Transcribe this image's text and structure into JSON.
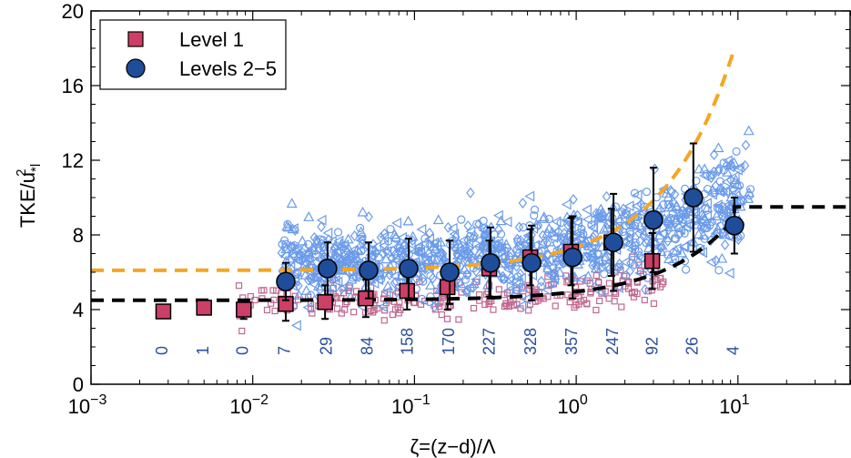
{
  "chart_data": {
    "type": "scatter",
    "title": "",
    "xlabel": "ζ=(z−d)/Λ",
    "ylabel": "TKE/u",
    "ylabel_sub": "*l",
    "ylabel_sup": "2",
    "xscale": "log",
    "xlim": [
      0.001,
      50
    ],
    "ylim": [
      0,
      20
    ],
    "x_ticks": [
      {
        "value": 0.001,
        "base": "10",
        "exp": "−3"
      },
      {
        "value": 0.01,
        "base": "10",
        "exp": "−2"
      },
      {
        "value": 0.1,
        "base": "10",
        "exp": "−1"
      },
      {
        "value": 1,
        "base": "10",
        "exp": "0"
      },
      {
        "value": 10,
        "base": "10",
        "exp": "1"
      }
    ],
    "y_ticks": [
      "0",
      "4",
      "8",
      "12",
      "16",
      "20"
    ],
    "grid": false,
    "legend_position": "top-left",
    "legend": [
      {
        "label": "Level 1",
        "marker": "square",
        "color": "#cc3f66"
      },
      {
        "label": "Levels 2−5",
        "marker": "circle",
        "color": "#1f4d9a"
      }
    ],
    "series": [
      {
        "name": "Level 1",
        "marker": "square",
        "color": "#cc3f66",
        "points": [
          {
            "x": 0.0028,
            "y": 3.9
          },
          {
            "x": 0.005,
            "y": 4.1
          },
          {
            "x": 0.0088,
            "y": 4.0,
            "err": 0.5
          },
          {
            "x": 0.016,
            "y": 4.3,
            "err": 0.9
          },
          {
            "x": 0.028,
            "y": 4.4,
            "err": 0.9
          },
          {
            "x": 0.05,
            "y": 4.6,
            "err": 1.0
          },
          {
            "x": 0.09,
            "y": 5.0,
            "err": 1.0
          },
          {
            "x": 0.16,
            "y": 5.2,
            "err": 1.2
          },
          {
            "x": 0.29,
            "y": 6.2,
            "err": 1.5
          },
          {
            "x": 0.52,
            "y": 6.8,
            "err": 1.5
          },
          {
            "x": 0.93,
            "y": 7.1,
            "err": 1.8
          },
          {
            "x": 1.65,
            "y": 7.6,
            "err": 1.8
          },
          {
            "x": 2.95,
            "y": 6.6,
            "err": 1.5
          }
        ]
      },
      {
        "name": "Levels 2−5",
        "marker": "circle",
        "color": "#1f4d9a",
        "points": [
          {
            "x": 0.016,
            "y": 5.5,
            "err": 1.0
          },
          {
            "x": 0.029,
            "y": 6.2,
            "err": 1.4
          },
          {
            "x": 0.052,
            "y": 6.1,
            "err": 1.5
          },
          {
            "x": 0.092,
            "y": 6.2,
            "err": 1.6
          },
          {
            "x": 0.165,
            "y": 6.0,
            "err": 1.7
          },
          {
            "x": 0.295,
            "y": 6.5,
            "err": 1.9
          },
          {
            "x": 0.53,
            "y": 6.5,
            "err": 2.0
          },
          {
            "x": 0.95,
            "y": 6.8,
            "err": 2.2
          },
          {
            "x": 1.7,
            "y": 7.6,
            "err": 2.6
          },
          {
            "x": 3.0,
            "y": 8.8,
            "err": 2.8
          },
          {
            "x": 5.3,
            "y": 10.0,
            "err": 2.9
          },
          {
            "x": 9.5,
            "y": 8.5,
            "err": 1.5
          }
        ]
      }
    ],
    "fit_lines": [
      {
        "style": "dashed",
        "color": "#f5a623",
        "a": 6.1,
        "b": 1.25,
        "n": 1.0,
        "x_start": 0.001,
        "x_end": 9.5
      },
      {
        "style": "dashed",
        "color": "#000000",
        "a": 4.5,
        "b": 0.46,
        "n": 1.0,
        "x_start": 0.001,
        "x_end": 9.5,
        "asymptote": 9.5,
        "asymptote_x_end": 50
      }
    ],
    "counts": [
      {
        "x": 0.0028,
        "label": "0"
      },
      {
        "x": 0.005,
        "label": "1"
      },
      {
        "x": 0.0088,
        "label": "0"
      },
      {
        "x": 0.016,
        "label": "7"
      },
      {
        "x": 0.029,
        "label": "29"
      },
      {
        "x": 0.052,
        "label": "84"
      },
      {
        "x": 0.092,
        "label": "158"
      },
      {
        "x": 0.165,
        "label": "170"
      },
      {
        "x": 0.295,
        "label": "227"
      },
      {
        "x": 0.53,
        "label": "328"
      },
      {
        "x": 0.95,
        "label": "357"
      },
      {
        "x": 1.7,
        "label": "247"
      },
      {
        "x": 3.0,
        "label": "92"
      },
      {
        "x": 5.3,
        "label": "26"
      },
      {
        "x": 9.5,
        "label": "4"
      }
    ],
    "background_scatter": [
      {
        "name": "raw-level-1",
        "color": "#c06890",
        "shape": "square",
        "n": 260,
        "xmin": 0.008,
        "xmax": 3.5,
        "center_a": 4.3,
        "center_b": 0.7,
        "spread": 0.7
      },
      {
        "name": "raw-levels-2-5",
        "color": "#6a9bea",
        "shapes": [
          "circle",
          "triangle-left",
          "triangle-up",
          "diamond"
        ],
        "n": 1100,
        "xmin": 0.015,
        "xmax": 12,
        "center_a": 6.3,
        "center_b": 1.15,
        "spread": 1.6
      }
    ]
  }
}
